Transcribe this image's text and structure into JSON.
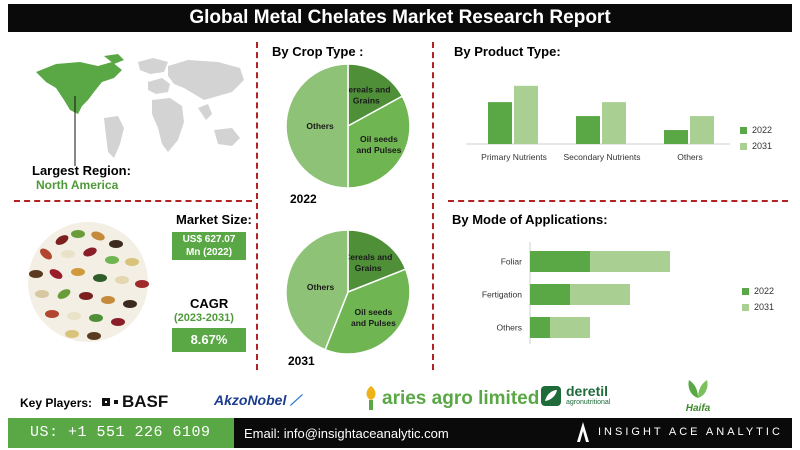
{
  "title": "Global Metal Chelates Market Research Report",
  "region": {
    "label": "Largest Region:",
    "value": "North America"
  },
  "market_size": {
    "label": "Market Size:",
    "value_line1": "US$ 627.07",
    "value_line2": "Mn (2022)"
  },
  "cagr": {
    "label": "CAGR",
    "period": "(2023-2031)",
    "value": "8.67%"
  },
  "colors": {
    "dark_green": "#5aa845",
    "mid_green": "#6fb552",
    "light_green": "#a9cf92",
    "pie_others": "#8ec276",
    "pie_cereals": "#4e8f38",
    "red_divider": "#b22222",
    "black": "#0a0a0a"
  },
  "key_players": {
    "label": "Key Players:",
    "logos": [
      "BASF",
      "AkzoNobel",
      "aries agro limited",
      "deretil",
      "agronutritional",
      "Haifa"
    ]
  },
  "footer": {
    "phone": "US: +1 551 226 6109",
    "email": "Email: info@insightaceanalytic.com",
    "brand": "INSIGHT ACE ANALYTIC"
  },
  "chart_data": [
    {
      "type": "pie",
      "title": "By Crop Type :",
      "year": "2022",
      "labels": [
        "Others",
        "Cereals and Grains",
        "Oil seeds and Pulses"
      ],
      "values": [
        50,
        17,
        33
      ]
    },
    {
      "type": "pie",
      "title": "",
      "year": "2031",
      "labels": [
        "Others",
        "Cereals and Grains",
        "Oil seeds and Pulses"
      ],
      "values": [
        44,
        19,
        37
      ]
    },
    {
      "type": "bar",
      "title": "By Product Type:",
      "categories": [
        "Primary Nutrients",
        "Secondary Nutrients",
        "Others"
      ],
      "series": [
        {
          "name": "2022",
          "values": [
            36,
            24,
            12
          ]
        },
        {
          "name": "2031",
          "values": [
            50,
            36,
            24
          ]
        }
      ],
      "ylim": [
        0,
        55
      ]
    },
    {
      "type": "bar",
      "orientation": "horizontal",
      "stacked": true,
      "title": "By Mode of Applications:",
      "categories": [
        "Foliar",
        "Fertigation",
        "Others"
      ],
      "series": [
        {
          "name": "2022",
          "values": [
            30,
            20,
            10
          ]
        },
        {
          "name": "2031",
          "values": [
            40,
            30,
            20
          ]
        }
      ],
      "xlim": [
        0,
        100
      ]
    }
  ]
}
